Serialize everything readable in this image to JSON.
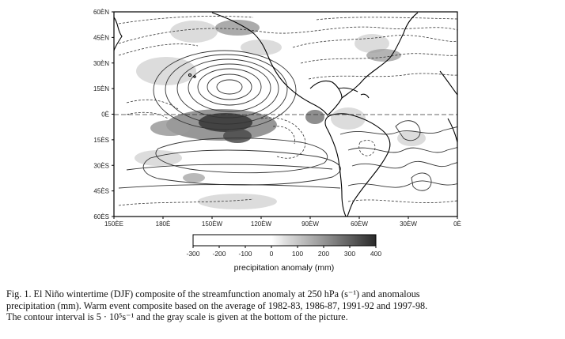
{
  "map": {
    "lat_labels": [
      "60ÈN",
      "45ÈN",
      "30ÈN",
      "15ÈN",
      "0È",
      "15ÈS",
      "30ÈS",
      "45ÈS",
      "60ÈS"
    ],
    "lon_labels": [
      "150ÈE",
      "180È",
      "150ÈW",
      "120ÈW",
      "90ÈW",
      "60ÈW",
      "30ÈW",
      "0È"
    ],
    "extent": {
      "lon_min": 150,
      "lon_max": 360,
      "lat_min": -60,
      "lat_max": 60
    }
  },
  "colorbar": {
    "ticks": [
      "-300",
      "-200",
      "-100",
      "0",
      "100",
      "200",
      "300",
      "400"
    ],
    "label": "precipitation anomaly (mm)"
  },
  "caption": {
    "line1": "Fig. 1. El Niño wintertime (DJF) composite of the streamfunction anomaly at 250 hPa (s⁻¹) and anomalous",
    "line2": "precipitation (mm). Warm event composite based on the average of 1982-83, 1986-87, 1991-92 and 1997-98.",
    "line3": "The contour interval is 5 · 10⁵s⁻¹ and the gray scale is given at the bottom of the picture."
  },
  "colors": {
    "land": "#000000",
    "contour": "#333333",
    "shade_dark": "#333333",
    "shade_light": "#d8d8d8"
  }
}
